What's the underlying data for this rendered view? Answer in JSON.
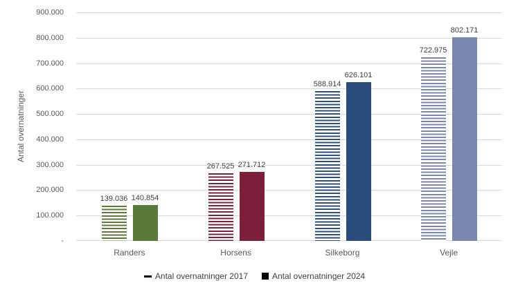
{
  "chart_data": {
    "type": "bar",
    "title": "",
    "xlabel": "",
    "ylabel": "Antal overnatninger",
    "categories": [
      "Randers",
      "Horsens",
      "Silkeborg",
      "Vejle"
    ],
    "series": [
      {
        "name": "Antal overnatninger 2017",
        "style": "striped",
        "values": [
          139036,
          267525,
          588914,
          722975
        ],
        "labels": [
          "139.036",
          "267.525",
          "588.914",
          "722.975"
        ]
      },
      {
        "name": "Antal overnatninger 2024",
        "style": "solid",
        "values": [
          140854,
          271712,
          626101,
          802171
        ],
        "labels": [
          "140.854",
          "271.712",
          "626.101",
          "802.171"
        ]
      }
    ],
    "category_colors": [
      "#5a7a38",
      "#7e1f3a",
      "#2b4d7e",
      "#7a87ae"
    ],
    "ylim": [
      0,
      900000
    ],
    "ytick_step": 100000,
    "yticks_bottom_to_top": [
      "-",
      "100.000",
      "200.000",
      "300.000",
      "400.000",
      "500.000",
      "600.000",
      "700.000",
      "800.000",
      "900.000"
    ],
    "grid": true,
    "legend_position": "bottom",
    "legend_markers": [
      "dash",
      "square"
    ],
    "colors": {
      "gridline": "#d9d9d9",
      "axis_text": "#595959",
      "data_label_text": "#404040",
      "legend_marker": "#000000",
      "background": "#ffffff"
    }
  }
}
